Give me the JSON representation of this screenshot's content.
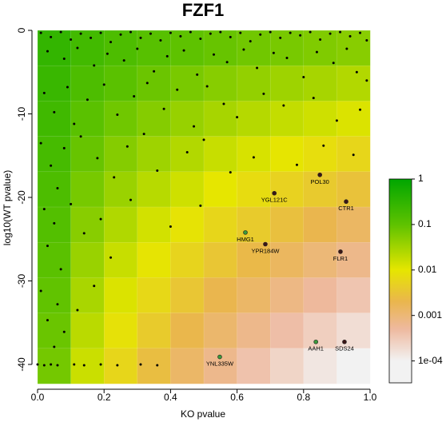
{
  "chart_data": {
    "type": "scatter",
    "title": "FZF1",
    "xlabel": "KO pvalue",
    "ylabel": "log10(WT pvalue)",
    "xlim": [
      0,
      1
    ],
    "ylim": [
      -42.3,
      0
    ],
    "xticks": [
      {
        "value": 0,
        "label": "0.0"
      },
      0.2,
      0.4,
      0.6,
      0.8,
      {
        "value": 1,
        "label": "1.0"
      }
    ],
    "yticks": [
      0,
      -10,
      -20,
      -30,
      -40
    ],
    "heatmap": {
      "values": [
        [
          0.29,
          0.2,
          0.15,
          0.12,
          0.1,
          0.086,
          0.073,
          0.064,
          0.056,
          0.049
        ],
        [
          0.25,
          0.15,
          0.11,
          0.08,
          0.063,
          0.05,
          0.041,
          0.034,
          0.029,
          0.024
        ],
        [
          0.21,
          0.11,
          0.074,
          0.052,
          0.038,
          0.029,
          0.023,
          0.018,
          0.015,
          0.012
        ],
        [
          0.18,
          0.086,
          0.052,
          0.034,
          0.024,
          0.017,
          0.013,
          0.0098,
          0.0076,
          0.0059
        ],
        [
          0.15,
          0.065,
          0.036,
          0.022,
          0.015,
          0.01,
          0.0072,
          0.0052,
          0.0039,
          0.003
        ],
        [
          0.13,
          0.049,
          0.025,
          0.014,
          0.009,
          0.0059,
          0.004,
          0.0028,
          0.002,
          0.0014
        ],
        [
          0.11,
          0.037,
          0.017,
          0.0094,
          0.0055,
          0.0034,
          0.0022,
          0.0015,
          0.001,
          0.00072
        ],
        [
          0.095,
          0.028,
          0.012,
          0.0062,
          0.0034,
          0.002,
          0.0013,
          0.0008,
          0.00053,
          0.00036
        ],
        [
          0.081,
          0.021,
          0.0085,
          0.004,
          0.0021,
          0.0012,
          0.0007,
          0.00043,
          0.00027,
          0.00018
        ],
        [
          0.069,
          0.016,
          0.0059,
          0.0026,
          0.0013,
          0.00069,
          0.00039,
          0.00023,
          0.00014,
          8.7e-05
        ]
      ]
    },
    "colorscale": [
      {
        "value": 1,
        "color": "#00a600"
      },
      {
        "value": 0.1,
        "color": "#5ec200"
      },
      {
        "value": 0.01,
        "color": "#e6e600"
      },
      {
        "value": 0.002,
        "color": "#eab64e"
      },
      {
        "value": 0.0005,
        "color": "#eeb99f"
      },
      {
        "value": 0.0001,
        "color": "#f2f2f2"
      }
    ],
    "colorbar_lim": [
      3.3e-05,
      1
    ],
    "colorbar_ticks": [
      1,
      0.1,
      0.01,
      0.001,
      {
        "value": 0.0001,
        "label": "1e-04"
      }
    ],
    "points": {
      "color": "#000000",
      "x": [
        0.01,
        0.04,
        0.07,
        0.1,
        0.13,
        0.16,
        0.19,
        0.22,
        0.25,
        0.28,
        0.31,
        0.34,
        0.37,
        0.4,
        0.43,
        0.46,
        0.49,
        0.52,
        0.55,
        0.58,
        0.61,
        0.64,
        0.67,
        0.7,
        0.73,
        0.76,
        0.79,
        0.82,
        0.85,
        0.88,
        0.91,
        0.94,
        0.97,
        0.99,
        0.03,
        0.08,
        0.12,
        0.17,
        0.21,
        0.26,
        0.3,
        0.35,
        0.39,
        0.44,
        0.48,
        0.53,
        0.57,
        0.62,
        0.66,
        0.71,
        0.75,
        0.8,
        0.84,
        0.89,
        0.93,
        0.96,
        0.99,
        0.02,
        0.05,
        0.09,
        0.11,
        0.15,
        0.2,
        0.24,
        0.29,
        0.33,
        0.38,
        0.42,
        0.47,
        0.51,
        0.56,
        0.6,
        0.68,
        0.74,
        0.83,
        0.9,
        0.97,
        0.01,
        0.04,
        0.06,
        0.08,
        0.13,
        0.18,
        0.23,
        0.27,
        0.32,
        0.36,
        0.45,
        0.5,
        0.58,
        0.65,
        0.78,
        0.86,
        0.95,
        0.02,
        0.03,
        0.05,
        0.07,
        0.1,
        0.14,
        0.19,
        0.22,
        0.28,
        0.4,
        0.49,
        0.01,
        0.03,
        0.05,
        0.06,
        0.08,
        0.12,
        0.17,
        0.0,
        0.02,
        0.04,
        0.06,
        0.11,
        0.14,
        0.19,
        0.24,
        0.31,
        0.36
      ],
      "y": [
        -0.3,
        -0.8,
        -0.2,
        -1.1,
        -0.4,
        -0.9,
        -0.3,
        -1.4,
        -0.5,
        -0.2,
        -0.9,
        -0.4,
        -1.2,
        -0.3,
        -0.7,
        -0.2,
        -1.0,
        -0.4,
        -0.2,
        -0.8,
        -0.3,
        -1.3,
        -0.5,
        -0.2,
        -0.9,
        -0.3,
        -0.6,
        -0.2,
        -1.1,
        -0.4,
        -0.2,
        -0.7,
        -0.3,
        -1.2,
        -2.5,
        -3.4,
        -2.1,
        -4.2,
        -2.8,
        -3.6,
        -2.2,
        -4.9,
        -3.1,
        -2.4,
        -5.3,
        -2.9,
        -3.8,
        -2.3,
        -4.5,
        -2.7,
        -3.3,
        -5.6,
        -2.6,
        -3.9,
        -2.2,
        -5.0,
        -6.0,
        -7.5,
        -9.8,
        -6.8,
        -11.2,
        -8.3,
        -6.5,
        -10.1,
        -7.9,
        -6.3,
        -9.4,
        -7.1,
        -11.5,
        -6.7,
        -8.8,
        -10.4,
        -7.6,
        -9.0,
        -8.1,
        -10.8,
        -9.5,
        -13.5,
        -16.2,
        -18.9,
        -14.1,
        -12.7,
        -15.3,
        -17.6,
        -13.9,
        -12.4,
        -16.8,
        -14.6,
        -13.1,
        -17.0,
        -15.2,
        -16.1,
        -13.8,
        -14.9,
        -21.4,
        -25.8,
        -23.1,
        -28.6,
        -20.8,
        -24.3,
        -22.6,
        -27.2,
        -20.3,
        -23.5,
        -21.0,
        -31.2,
        -34.7,
        -37.9,
        -32.8,
        -36.1,
        -33.5,
        -30.6,
        -40.0,
        -40.1,
        -40.0,
        -40.1,
        -40.0,
        -40.1,
        -40.0,
        -40.1,
        -40.0,
        -40.1
      ]
    },
    "genes": {
      "labels": [
        "POL30",
        "YGL121C",
        "CTR1",
        "HMG1",
        "YPR184W",
        "FLR1",
        "AAH1",
        "SDS24",
        "YNL335W"
      ],
      "x": [
        0.849,
        0.712,
        0.928,
        0.625,
        0.685,
        0.911,
        0.837,
        0.923,
        0.548
      ],
      "y": [
        -17.3,
        -19.5,
        -20.5,
        -24.2,
        -25.6,
        -26.5,
        -37.3,
        -37.3,
        -39.1
      ],
      "colors": [
        "#3a1616",
        "#3a1616",
        "#3a1616",
        "#3c9a3c",
        "#3a1616",
        "#3a1616",
        "#3c9a3c",
        "#3a1616",
        "#3c9a3c"
      ]
    }
  }
}
